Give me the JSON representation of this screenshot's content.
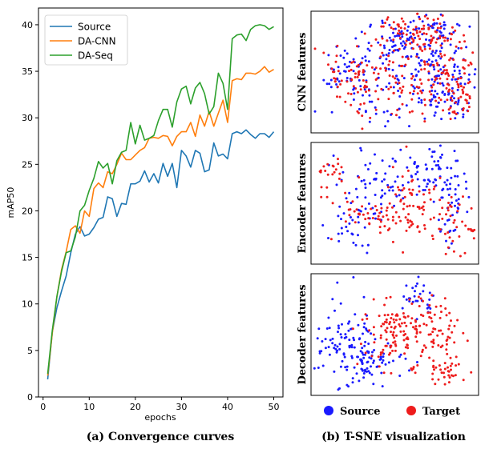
{
  "colors": {
    "source": "#1f77b4",
    "cnn": "#ff7f0e",
    "seq": "#2ca02c",
    "tsne_source": "#1a1aff",
    "tsne_target": "#ee1c1c"
  },
  "chart_data": [
    {
      "type": "line",
      "xlabel": "epochs",
      "ylabel": "mAP50",
      "xlim": [
        -1,
        52
      ],
      "ylim": [
        0,
        41.8
      ],
      "xticks": [
        0,
        10,
        20,
        30,
        40,
        50
      ],
      "yticks": [
        0,
        5,
        10,
        15,
        20,
        25,
        30,
        35,
        40
      ],
      "legend": "top-left",
      "caption": "(a) Convergence curves",
      "x": [
        1,
        2,
        3,
        4,
        5,
        6,
        7,
        8,
        9,
        10,
        11,
        12,
        13,
        14,
        15,
        16,
        17,
        18,
        19,
        20,
        21,
        22,
        23,
        24,
        25,
        26,
        27,
        28,
        29,
        30,
        31,
        32,
        33,
        34,
        35,
        36,
        37,
        38,
        39,
        40,
        41,
        42,
        43,
        44,
        45,
        46,
        47,
        48,
        49,
        50
      ],
      "series": [
        {
          "name": "Source",
          "color_key": "source",
          "values": [
            1.9,
            7.0,
            9.6,
            11.4,
            13.0,
            15.5,
            17.5,
            18.3,
            17.3,
            17.5,
            18.2,
            19.1,
            19.3,
            21.5,
            21.3,
            19.4,
            20.8,
            20.7,
            22.9,
            22.9,
            23.2,
            24.3,
            23.1,
            24.0,
            23.0,
            25.1,
            23.7,
            25.1,
            22.5,
            26.5,
            25.9,
            24.7,
            26.5,
            26.2,
            24.2,
            24.4,
            27.3,
            25.9,
            26.1,
            25.6,
            28.3,
            28.5,
            28.3,
            28.7,
            28.2,
            27.8,
            28.3,
            28.3,
            27.9,
            28.5
          ]
        },
        {
          "name": "DA-CNN",
          "color_key": "cnn",
          "values": [
            2.3,
            6.9,
            10.8,
            13.7,
            15.6,
            18.0,
            18.4,
            17.6,
            20.0,
            19.4,
            22.4,
            23.0,
            22.5,
            24.2,
            24.0,
            25.0,
            26.2,
            25.5,
            25.5,
            26.0,
            26.5,
            26.8,
            27.8,
            27.9,
            27.8,
            28.1,
            28.0,
            27.0,
            28.0,
            28.5,
            28.5,
            29.5,
            28.0,
            30.3,
            29.1,
            30.7,
            29.1,
            30.5,
            31.9,
            29.5,
            34.0,
            34.2,
            34.1,
            34.8,
            34.8,
            34.7,
            35.0,
            35.5,
            34.9,
            35.2
          ]
        },
        {
          "name": "DA-Seq",
          "color_key": "seq",
          "values": [
            2.5,
            7.2,
            10.8,
            13.5,
            15.5,
            15.7,
            17.2,
            20.0,
            20.6,
            22.2,
            23.5,
            25.3,
            24.6,
            25.1,
            22.9,
            25.4,
            26.3,
            26.5,
            29.5,
            27.2,
            29.2,
            27.6,
            27.8,
            28.1,
            29.7,
            30.9,
            30.9,
            29.0,
            31.7,
            33.1,
            33.4,
            31.5,
            33.2,
            33.8,
            32.6,
            30.4,
            31.2,
            34.8,
            33.7,
            30.9,
            38.5,
            38.9,
            39.0,
            38.3,
            39.5,
            39.9,
            40.0,
            39.9,
            39.5,
            39.8
          ]
        }
      ]
    },
    {
      "type": "scatter",
      "caption": "(b) T-SNE visualization",
      "panels": [
        {
          "label": "CNN features"
        },
        {
          "label": "Encoder features"
        },
        {
          "label": "Decoder features"
        }
      ],
      "legend": {
        "source": "Source",
        "target": "Target"
      }
    }
  ]
}
